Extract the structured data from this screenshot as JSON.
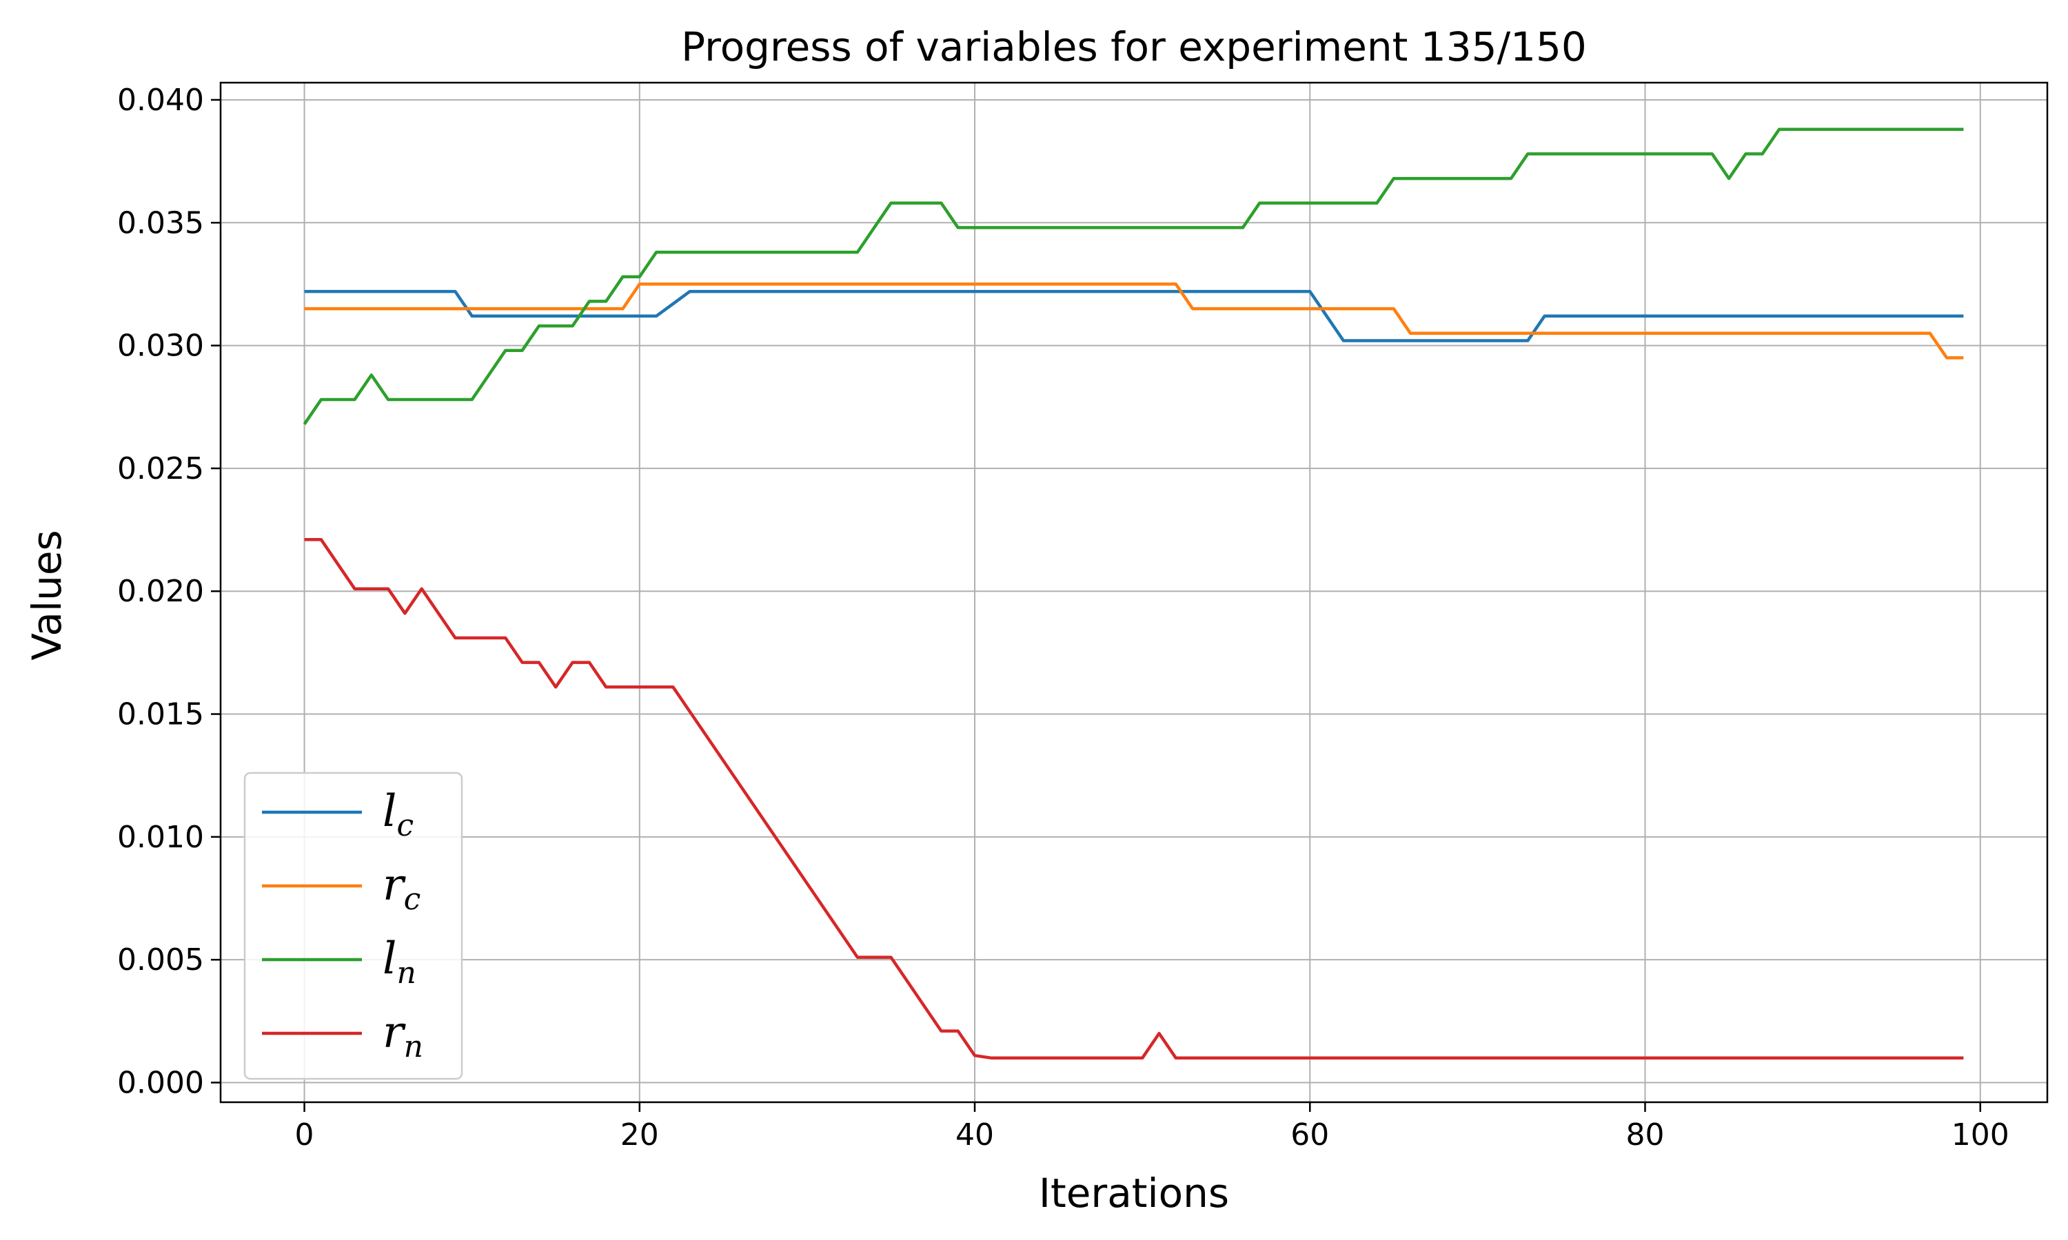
{
  "chart_data": {
    "type": "line",
    "title": "Progress of variables for experiment 135/150",
    "xlabel": "Iterations",
    "ylabel": "Values",
    "xlim": [
      -5,
      104
    ],
    "ylim": [
      -0.0008,
      0.0407
    ],
    "xticks": [
      0,
      20,
      40,
      60,
      80,
      100
    ],
    "xtick_labels": [
      "0",
      "20",
      "40",
      "60",
      "80",
      "100"
    ],
    "yticks": [
      0.0,
      0.005,
      0.01,
      0.015,
      0.02,
      0.025,
      0.03,
      0.035,
      0.04
    ],
    "ytick_labels": [
      "0.000",
      "0.005",
      "0.010",
      "0.015",
      "0.020",
      "0.025",
      "0.030",
      "0.035",
      "0.040"
    ],
    "grid": true,
    "legend_position": "lower-left",
    "series": [
      {
        "name": "l_c",
        "label_main": "l",
        "label_sub": "c",
        "color": "#1f77b4",
        "x": [
          0,
          9,
          10,
          20,
          21,
          22,
          23,
          52,
          53,
          60,
          61,
          62,
          73,
          74,
          99
        ],
        "y": [
          0.0322,
          0.0322,
          0.0312,
          0.0312,
          0.0312,
          0.0317,
          0.0322,
          0.0322,
          0.0322,
          0.0322,
          0.0312,
          0.0302,
          0.0302,
          0.0312,
          0.0312
        ]
      },
      {
        "name": "r_c",
        "label_main": "r",
        "label_sub": "c",
        "color": "#ff7f0e",
        "x": [
          0,
          19,
          20,
          52,
          53,
          65,
          66,
          97,
          98,
          99
        ],
        "y": [
          0.0315,
          0.0315,
          0.0325,
          0.0325,
          0.0315,
          0.0315,
          0.0305,
          0.0305,
          0.0295,
          0.0295
        ]
      },
      {
        "name": "l_n",
        "label_main": "l",
        "label_sub": "n",
        "color": "#2ca02c",
        "x": [
          0,
          1,
          3,
          4,
          5,
          10,
          12,
          13,
          14,
          16,
          17,
          18,
          19,
          20,
          21,
          33,
          35,
          38,
          39,
          56,
          57,
          64,
          65,
          72,
          73,
          84,
          85,
          86,
          87,
          88,
          99
        ],
        "y": [
          0.0268,
          0.0278,
          0.0278,
          0.0288,
          0.0278,
          0.0278,
          0.0298,
          0.0298,
          0.0308,
          0.0308,
          0.0318,
          0.0318,
          0.0328,
          0.0328,
          0.0338,
          0.0338,
          0.0358,
          0.0358,
          0.0348,
          0.0348,
          0.0358,
          0.0358,
          0.0368,
          0.0368,
          0.0378,
          0.0378,
          0.0368,
          0.0378,
          0.0378,
          0.0388,
          0.0388
        ]
      },
      {
        "name": "r_n",
        "label_main": "r",
        "label_sub": "n",
        "color": "#d62728",
        "x": [
          0,
          1,
          3,
          5,
          6,
          7,
          9,
          12,
          13,
          14,
          15,
          16,
          17,
          18,
          22,
          33,
          35,
          38,
          39,
          40,
          41,
          50,
          51,
          52,
          99
        ],
        "y": [
          0.0221,
          0.0221,
          0.0201,
          0.0201,
          0.0191,
          0.0201,
          0.0181,
          0.0181,
          0.0171,
          0.0171,
          0.0161,
          0.0171,
          0.0171,
          0.0161,
          0.0161,
          0.0051,
          0.0051,
          0.0021,
          0.0021,
          0.0011,
          0.001,
          0.001,
          0.002,
          0.001,
          0.001
        ]
      }
    ]
  }
}
